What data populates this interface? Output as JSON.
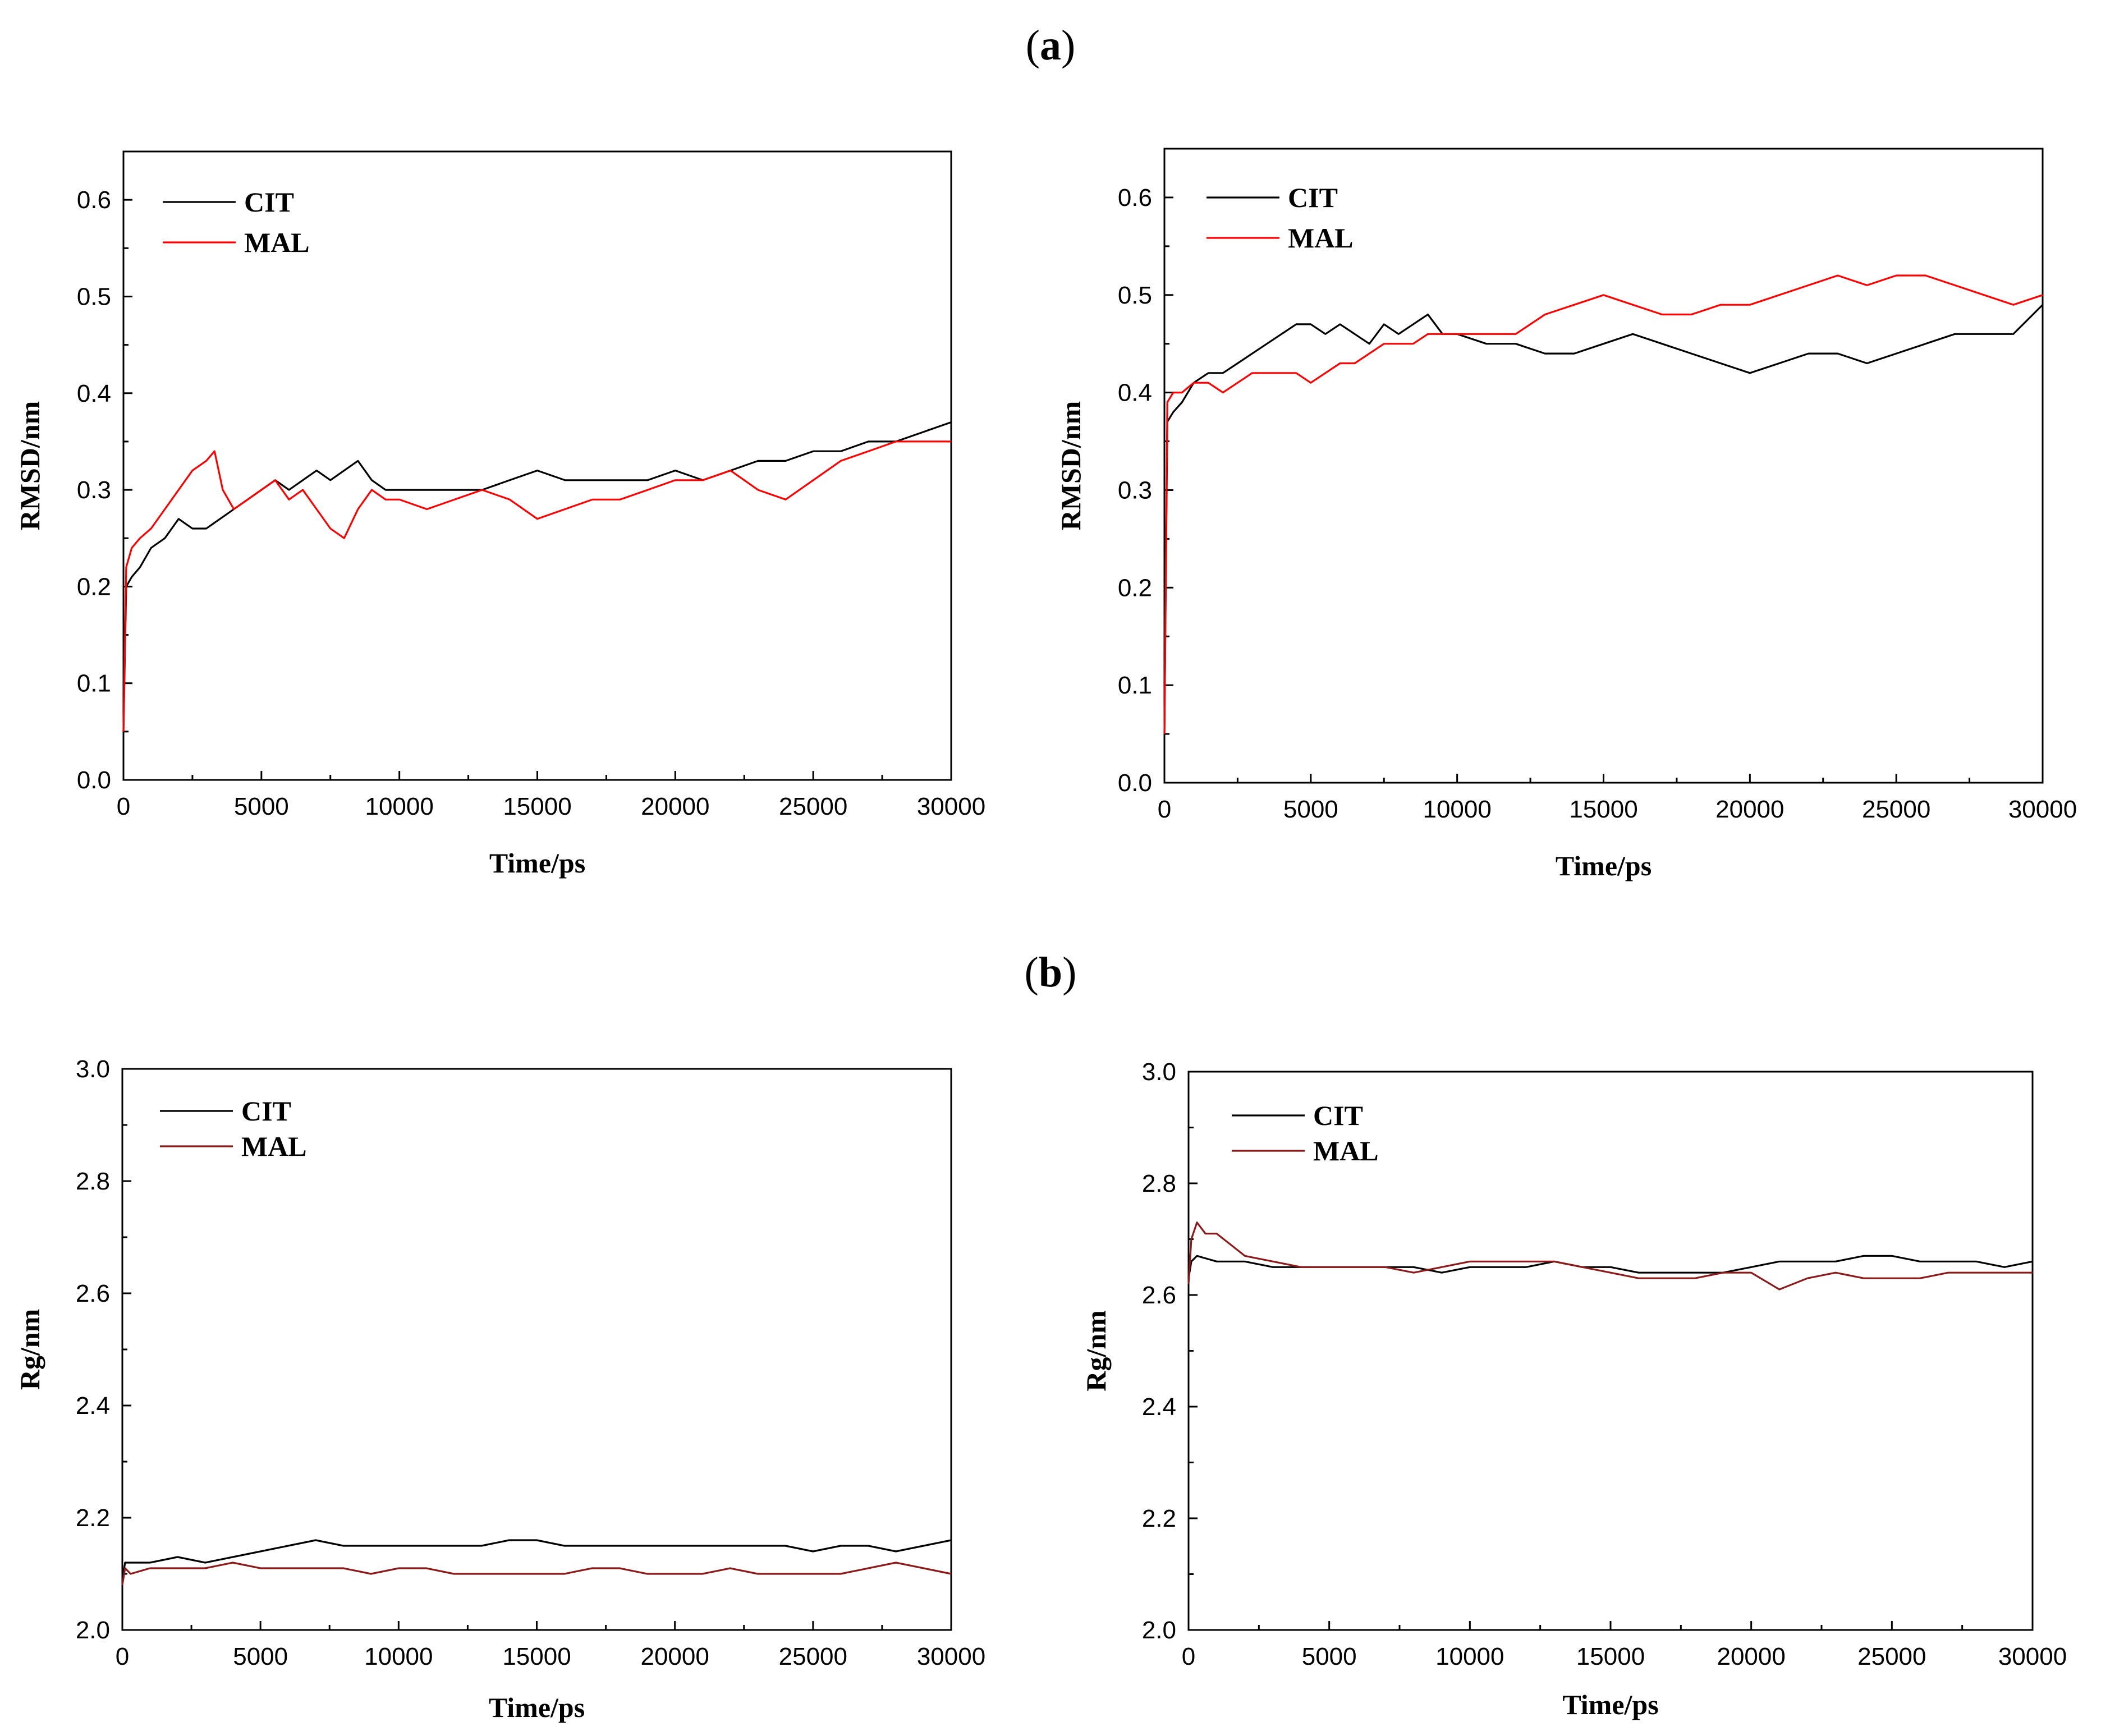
{
  "labels": {
    "a_open": "(",
    "a_letter": "a",
    "a_close": ")",
    "b_open": "(",
    "b_letter": "b",
    "b_close": ")"
  },
  "chart_data": [
    {
      "id": "a-left",
      "type": "line",
      "title": "",
      "xlabel": "Time/ps",
      "ylabel": "RMSD/nm",
      "xlim": [
        0,
        30000
      ],
      "ylim": [
        0.0,
        0.65
      ],
      "xticks": [
        0,
        5000,
        10000,
        15000,
        20000,
        25000,
        30000
      ],
      "xtick_labels": [
        "0",
        "5000",
        "10000",
        "15000",
        "20000",
        "25000",
        "30000"
      ],
      "yticks": [
        0.0,
        0.1,
        0.2,
        0.3,
        0.4,
        0.5,
        0.6
      ],
      "ytick_labels": [
        "0.0",
        "0.1",
        "0.2",
        "0.3",
        "0.4",
        "0.5",
        "0.6"
      ],
      "legend_position": "top-left",
      "series": [
        {
          "name": "CIT",
          "color": "#000000",
          "x": [
            0,
            100,
            300,
            600,
            1000,
            1500,
            2000,
            2500,
            3000,
            3500,
            4000,
            4500,
            5000,
            5500,
            6000,
            6500,
            7000,
            7500,
            8000,
            8500,
            9000,
            9500,
            10000,
            11000,
            12000,
            13000,
            14000,
            15000,
            16000,
            17000,
            18000,
            19000,
            20000,
            21000,
            22000,
            23000,
            24000,
            25000,
            26000,
            27000,
            28000,
            29000,
            30000
          ],
          "values": [
            0.05,
            0.2,
            0.21,
            0.22,
            0.24,
            0.25,
            0.27,
            0.26,
            0.26,
            0.27,
            0.28,
            0.29,
            0.3,
            0.31,
            0.3,
            0.31,
            0.32,
            0.31,
            0.32,
            0.33,
            0.31,
            0.3,
            0.3,
            0.3,
            0.3,
            0.3,
            0.31,
            0.32,
            0.31,
            0.31,
            0.31,
            0.31,
            0.32,
            0.31,
            0.32,
            0.33,
            0.33,
            0.34,
            0.34,
            0.35,
            0.35,
            0.36,
            0.37
          ]
        },
        {
          "name": "MAL",
          "color": "#ff0000",
          "x": [
            0,
            100,
            300,
            600,
            1000,
            1500,
            2000,
            2500,
            3000,
            3300,
            3600,
            4000,
            4500,
            5000,
            5500,
            6000,
            6500,
            7000,
            7500,
            8000,
            8500,
            9000,
            9500,
            10000,
            11000,
            12000,
            13000,
            14000,
            15000,
            16000,
            17000,
            18000,
            19000,
            20000,
            21000,
            22000,
            23000,
            24000,
            25000,
            26000,
            27000,
            28000,
            29000,
            30000
          ],
          "values": [
            0.05,
            0.22,
            0.24,
            0.25,
            0.26,
            0.28,
            0.3,
            0.32,
            0.33,
            0.34,
            0.3,
            0.28,
            0.29,
            0.3,
            0.31,
            0.29,
            0.3,
            0.28,
            0.26,
            0.25,
            0.28,
            0.3,
            0.29,
            0.29,
            0.28,
            0.29,
            0.3,
            0.29,
            0.27,
            0.28,
            0.29,
            0.29,
            0.3,
            0.31,
            0.31,
            0.32,
            0.3,
            0.29,
            0.31,
            0.33,
            0.34,
            0.35,
            0.35,
            0.35
          ]
        }
      ]
    },
    {
      "id": "a-right",
      "type": "line",
      "title": "",
      "xlabel": "Time/ps",
      "ylabel": "RMSD/nm",
      "xlim": [
        0,
        30000
      ],
      "ylim": [
        0.0,
        0.65
      ],
      "xticks": [
        0,
        5000,
        10000,
        15000,
        20000,
        25000,
        30000
      ],
      "xtick_labels": [
        "0",
        "5000",
        "10000",
        "15000",
        "20000",
        "25000",
        "30000"
      ],
      "yticks": [
        0.0,
        0.1,
        0.2,
        0.3,
        0.4,
        0.5,
        0.6
      ],
      "ytick_labels": [
        "0.0",
        "0.1",
        "0.2",
        "0.3",
        "0.4",
        "0.5",
        "0.6"
      ],
      "legend_position": "top-left",
      "series": [
        {
          "name": "CIT",
          "color": "#000000",
          "x": [
            0,
            100,
            300,
            600,
            1000,
            1500,
            2000,
            2500,
            3000,
            3500,
            4000,
            4500,
            5000,
            5500,
            6000,
            6500,
            7000,
            7500,
            8000,
            8500,
            9000,
            9500,
            10000,
            11000,
            12000,
            13000,
            14000,
            15000,
            16000,
            17000,
            18000,
            19000,
            20000,
            21000,
            22000,
            23000,
            24000,
            25000,
            26000,
            27000,
            28000,
            29000,
            30000
          ],
          "values": [
            0.05,
            0.37,
            0.38,
            0.39,
            0.41,
            0.42,
            0.42,
            0.43,
            0.44,
            0.45,
            0.46,
            0.47,
            0.47,
            0.46,
            0.47,
            0.46,
            0.45,
            0.47,
            0.46,
            0.47,
            0.48,
            0.46,
            0.46,
            0.45,
            0.45,
            0.44,
            0.44,
            0.45,
            0.46,
            0.45,
            0.44,
            0.43,
            0.42,
            0.43,
            0.44,
            0.44,
            0.43,
            0.44,
            0.45,
            0.46,
            0.46,
            0.46,
            0.49
          ]
        },
        {
          "name": "MAL",
          "color": "#ff0000",
          "x": [
            0,
            100,
            300,
            600,
            1000,
            1500,
            2000,
            2500,
            3000,
            3500,
            4000,
            4500,
            5000,
            5500,
            6000,
            6500,
            7000,
            7500,
            8000,
            8500,
            9000,
            9500,
            10000,
            11000,
            12000,
            13000,
            14000,
            15000,
            16000,
            17000,
            18000,
            19000,
            20000,
            21000,
            22000,
            23000,
            24000,
            25000,
            26000,
            27000,
            28000,
            29000,
            30000
          ],
          "values": [
            0.05,
            0.39,
            0.4,
            0.4,
            0.41,
            0.41,
            0.4,
            0.41,
            0.42,
            0.42,
            0.42,
            0.42,
            0.41,
            0.42,
            0.43,
            0.43,
            0.44,
            0.45,
            0.45,
            0.45,
            0.46,
            0.46,
            0.46,
            0.46,
            0.46,
            0.48,
            0.49,
            0.5,
            0.49,
            0.48,
            0.48,
            0.49,
            0.49,
            0.5,
            0.51,
            0.52,
            0.51,
            0.52,
            0.52,
            0.51,
            0.5,
            0.49,
            0.5
          ]
        }
      ]
    },
    {
      "id": "b-left",
      "type": "line",
      "title": "",
      "xlabel": "Time/ps",
      "ylabel": "Rg/nm",
      "xlim": [
        0,
        30000
      ],
      "ylim": [
        2.0,
        3.0
      ],
      "xticks": [
        0,
        5000,
        10000,
        15000,
        20000,
        25000,
        30000
      ],
      "xtick_labels": [
        "0",
        "5000",
        "10000",
        "15000",
        "20000",
        "25000",
        "30000"
      ],
      "yticks": [
        2.0,
        2.2,
        2.4,
        2.6,
        2.8,
        3.0
      ],
      "ytick_labels": [
        "2.0",
        "2.2",
        "2.4",
        "2.6",
        "2.8",
        "3.0"
      ],
      "legend_position": "top-left",
      "series": [
        {
          "name": "CIT",
          "color": "#000000",
          "x": [
            0,
            100,
            300,
            1000,
            2000,
            3000,
            4000,
            5000,
            6000,
            7000,
            8000,
            9000,
            10000,
            11000,
            12000,
            13000,
            14000,
            15000,
            16000,
            17000,
            18000,
            19000,
            20000,
            21000,
            22000,
            23000,
            24000,
            25000,
            26000,
            27000,
            28000,
            29000,
            30000
          ],
          "values": [
            2.09,
            2.12,
            2.12,
            2.12,
            2.13,
            2.12,
            2.13,
            2.14,
            2.15,
            2.16,
            2.15,
            2.15,
            2.15,
            2.15,
            2.15,
            2.15,
            2.16,
            2.16,
            2.15,
            2.15,
            2.15,
            2.15,
            2.15,
            2.15,
            2.15,
            2.15,
            2.15,
            2.14,
            2.15,
            2.15,
            2.14,
            2.15,
            2.16
          ]
        },
        {
          "name": "MAL",
          "color": "#8b1a1a",
          "x": [
            0,
            100,
            300,
            1000,
            2000,
            3000,
            4000,
            5000,
            6000,
            7000,
            8000,
            9000,
            10000,
            11000,
            12000,
            13000,
            14000,
            15000,
            16000,
            17000,
            18000,
            19000,
            20000,
            21000,
            22000,
            23000,
            24000,
            25000,
            26000,
            27000,
            28000,
            29000,
            30000
          ],
          "values": [
            2.08,
            2.11,
            2.1,
            2.11,
            2.11,
            2.11,
            2.12,
            2.11,
            2.11,
            2.11,
            2.11,
            2.1,
            2.11,
            2.11,
            2.1,
            2.1,
            2.1,
            2.1,
            2.1,
            2.11,
            2.11,
            2.1,
            2.1,
            2.1,
            2.11,
            2.1,
            2.1,
            2.1,
            2.1,
            2.11,
            2.12,
            2.11,
            2.1
          ]
        }
      ]
    },
    {
      "id": "b-right",
      "type": "line",
      "title": "",
      "xlabel": "Time/ps",
      "ylabel": "Rg/nm",
      "xlim": [
        0,
        30000
      ],
      "ylim": [
        2.0,
        3.0
      ],
      "xticks": [
        0,
        5000,
        10000,
        15000,
        20000,
        25000,
        30000
      ],
      "xtick_labels": [
        "0",
        "5000",
        "10000",
        "15000",
        "20000",
        "25000",
        "30000"
      ],
      "yticks": [
        2.0,
        2.2,
        2.4,
        2.6,
        2.8,
        3.0
      ],
      "ytick_labels": [
        "2.0",
        "2.2",
        "2.4",
        "2.6",
        "2.8",
        "3.0"
      ],
      "legend_position": "top-left",
      "series": [
        {
          "name": "CIT",
          "color": "#000000",
          "x": [
            0,
            100,
            300,
            1000,
            2000,
            3000,
            4000,
            5000,
            6000,
            7000,
            8000,
            9000,
            10000,
            11000,
            12000,
            13000,
            14000,
            15000,
            16000,
            17000,
            18000,
            19000,
            20000,
            21000,
            22000,
            23000,
            24000,
            25000,
            26000,
            27000,
            28000,
            29000,
            30000
          ],
          "values": [
            2.63,
            2.66,
            2.67,
            2.66,
            2.66,
            2.65,
            2.65,
            2.65,
            2.65,
            2.65,
            2.65,
            2.64,
            2.65,
            2.65,
            2.65,
            2.66,
            2.65,
            2.65,
            2.64,
            2.64,
            2.64,
            2.64,
            2.65,
            2.66,
            2.66,
            2.66,
            2.67,
            2.67,
            2.66,
            2.66,
            2.66,
            2.65,
            2.66
          ]
        },
        {
          "name": "MAL",
          "color": "#8b1a1a",
          "x": [
            0,
            100,
            300,
            600,
            1000,
            1500,
            2000,
            3000,
            4000,
            5000,
            6000,
            7000,
            8000,
            9000,
            10000,
            11000,
            12000,
            13000,
            14000,
            15000,
            16000,
            17000,
            18000,
            19000,
            20000,
            21000,
            22000,
            23000,
            24000,
            25000,
            26000,
            27000,
            28000,
            29000,
            30000
          ],
          "values": [
            2.62,
            2.7,
            2.73,
            2.71,
            2.71,
            2.69,
            2.67,
            2.66,
            2.65,
            2.65,
            2.65,
            2.65,
            2.64,
            2.65,
            2.66,
            2.66,
            2.66,
            2.66,
            2.65,
            2.64,
            2.63,
            2.63,
            2.63,
            2.64,
            2.64,
            2.61,
            2.63,
            2.64,
            2.63,
            2.63,
            2.63,
            2.64,
            2.64,
            2.64,
            2.64
          ]
        }
      ]
    }
  ]
}
